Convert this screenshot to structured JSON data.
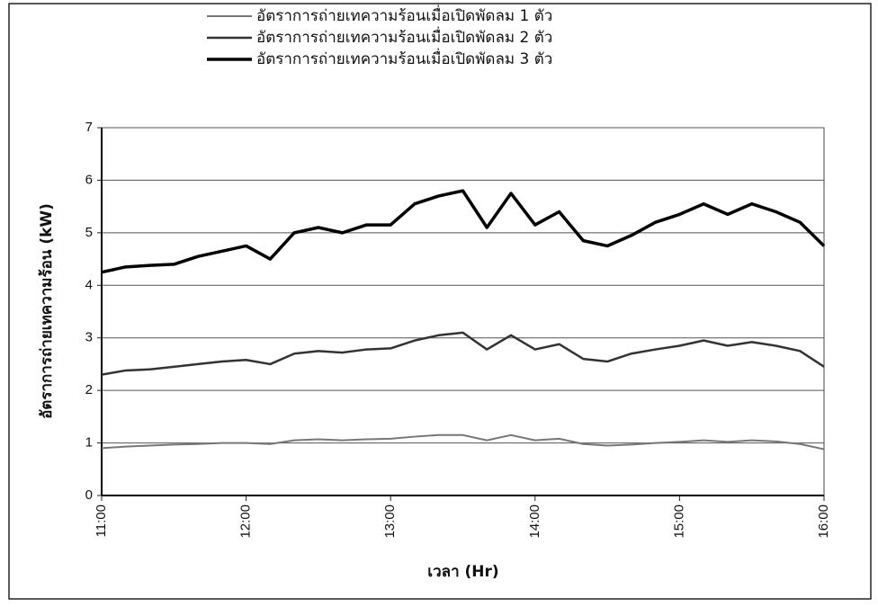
{
  "chart_data": {
    "type": "line",
    "legend_position": "top",
    "x_label": "เวลา (Hr)",
    "y_label": "อัตราการถ่ายเทความร้อน (kW)",
    "x": [
      "11:00",
      "11:10",
      "11:20",
      "11:30",
      "11:40",
      "11:50",
      "12:00",
      "12:10",
      "12:20",
      "12:30",
      "12:40",
      "12:50",
      "13:00",
      "13:10",
      "13:20",
      "13:30",
      "13:40",
      "13:50",
      "14:00",
      "14:10",
      "14:20",
      "14:30",
      "14:40",
      "14:50",
      "15:00",
      "15:10",
      "15:20",
      "15:30",
      "15:40",
      "15:50",
      "16:00"
    ],
    "xlim": [
      "11:00",
      "16:00"
    ],
    "xticks": [
      "11:00",
      "12:00",
      "13:00",
      "14:00",
      "15:00",
      "16:00"
    ],
    "ylim": [
      0,
      7
    ],
    "yticks": [
      0,
      1,
      2,
      3,
      4,
      5,
      6,
      7
    ],
    "grid": true,
    "series": [
      {
        "name": "อัตราการถ่ายเทความร้อนเมื่อเปิดพัดลม 1 ตัว",
        "color": "#777777",
        "width": 2,
        "values": [
          0.9,
          0.93,
          0.95,
          0.97,
          0.98,
          1.0,
          1.0,
          0.98,
          1.05,
          1.07,
          1.05,
          1.07,
          1.08,
          1.12,
          1.15,
          1.15,
          1.05,
          1.15,
          1.05,
          1.08,
          0.98,
          0.95,
          0.97,
          1.0,
          1.02,
          1.05,
          1.02,
          1.05,
          1.03,
          0.98,
          0.88
        ]
      },
      {
        "name": "อัตราการถ่ายเทความร้อนเมื่อเปิดพัดลม 2 ตัว",
        "color": "#333333",
        "width": 2.5,
        "values": [
          2.3,
          2.38,
          2.4,
          2.45,
          2.5,
          2.55,
          2.58,
          2.5,
          2.7,
          2.75,
          2.72,
          2.78,
          2.8,
          2.95,
          3.05,
          3.1,
          2.78,
          3.05,
          2.78,
          2.88,
          2.6,
          2.55,
          2.7,
          2.78,
          2.85,
          2.95,
          2.85,
          2.92,
          2.85,
          2.75,
          2.45
        ]
      },
      {
        "name": "อัตราการถ่ายเทความร้อนเมื่อเปิดพัดลม 3 ตัว",
        "color": "#000000",
        "width": 3.5,
        "values": [
          4.25,
          4.35,
          4.38,
          4.4,
          4.55,
          4.65,
          4.75,
          4.5,
          5.0,
          5.1,
          5.0,
          5.15,
          5.15,
          5.55,
          5.7,
          5.8,
          5.1,
          5.75,
          5.15,
          5.4,
          4.85,
          4.75,
          4.95,
          5.2,
          5.35,
          5.55,
          5.35,
          5.55,
          5.4,
          5.2,
          4.75
        ]
      }
    ]
  }
}
